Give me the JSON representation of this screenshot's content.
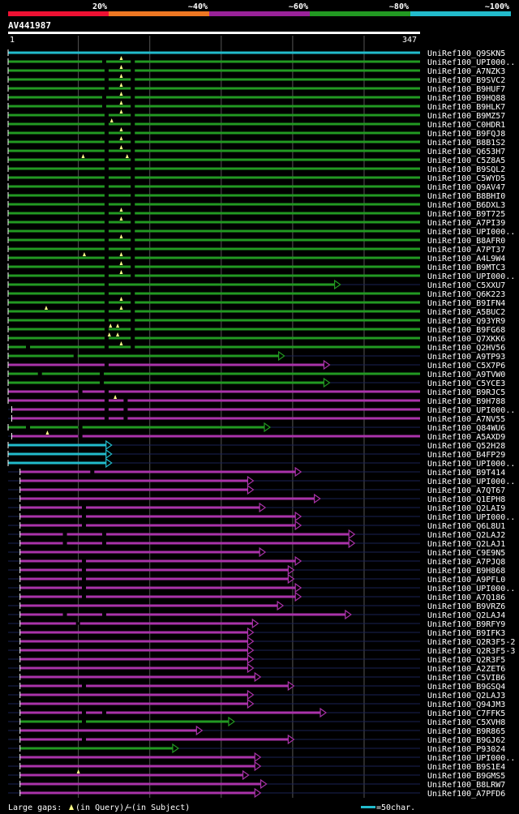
{
  "chart_data": {
    "type": "bar",
    "title": "AV441987",
    "query_length": 347,
    "axis_start_label": "1",
    "axis_end_label": "347",
    "identity_legend": [
      {
        "label": "20%",
        "color": "#ee1133"
      },
      {
        "label": "~40%",
        "color": "#ee7722"
      },
      {
        "label": "~60%",
        "color": "#992299"
      },
      {
        "label": "~80%",
        "color": "#229922"
      },
      {
        "label": "~100%",
        "color": "#22bbcc"
      }
    ],
    "footer": {
      "gaps_text": "Large gaps: ",
      "query_text": "(in Query)/",
      "subject_text": " (in Subject)",
      "scale_text": "=50char."
    },
    "colors": {
      "cyan": "#22bbcc",
      "green": "#229922",
      "purple": "#aa33aa",
      "gap_query": "#ffff88",
      "gap_subject": "#ffffff",
      "background": "#000000",
      "grid": "#555555",
      "label": "#ffffff"
    },
    "series": [
      {
        "name": "UniRef100_Q9SKN5",
        "start": 1,
        "end": 347,
        "color": "cyan",
        "arrow": false,
        "qgaps": [],
        "sgaps": []
      },
      {
        "name": "UniRef100_UPI000..",
        "start": 1,
        "end": 347,
        "color": "green",
        "arrow": false,
        "qgaps": [
          96
        ],
        "sgaps": [
          80,
          104
        ]
      },
      {
        "name": "UniRef100_A7NZK3",
        "start": 1,
        "end": 347,
        "color": "green",
        "arrow": false,
        "qgaps": [
          96
        ],
        "sgaps": [
          82,
          104
        ]
      },
      {
        "name": "UniRef100_B9SVC2",
        "start": 1,
        "end": 347,
        "color": "green",
        "arrow": false,
        "qgaps": [
          96
        ],
        "sgaps": [
          82,
          104
        ]
      },
      {
        "name": "UniRef100_B9HUF7",
        "start": 1,
        "end": 347,
        "color": "green",
        "arrow": false,
        "qgaps": [
          96
        ],
        "sgaps": [
          82,
          104
        ]
      },
      {
        "name": "UniRef100_B9HQ88",
        "start": 1,
        "end": 347,
        "color": "green",
        "arrow": false,
        "qgaps": [
          96
        ],
        "sgaps": [
          80,
          104
        ]
      },
      {
        "name": "UniRef100_B9HLK7",
        "start": 1,
        "end": 347,
        "color": "green",
        "arrow": false,
        "qgaps": [
          96
        ],
        "sgaps": [
          80,
          104
        ]
      },
      {
        "name": "UniRef100_B9MZ57",
        "start": 1,
        "end": 347,
        "color": "green",
        "arrow": false,
        "qgaps": [
          96
        ],
        "sgaps": [
          82,
          104
        ]
      },
      {
        "name": "UniRef100_C0HDR1",
        "start": 1,
        "end": 347,
        "color": "green",
        "arrow": false,
        "qgaps": [
          88
        ],
        "sgaps": [
          82,
          104
        ]
      },
      {
        "name": "UniRef100_B9FQJ8",
        "start": 1,
        "end": 347,
        "color": "green",
        "arrow": false,
        "qgaps": [
          96
        ],
        "sgaps": [
          82,
          104
        ]
      },
      {
        "name": "UniRef100_B8B1S2",
        "start": 1,
        "end": 347,
        "color": "green",
        "arrow": false,
        "qgaps": [
          96
        ],
        "sgaps": [
          82,
          104
        ]
      },
      {
        "name": "UniRef100_Q653H7",
        "start": 1,
        "end": 347,
        "color": "green",
        "arrow": false,
        "qgaps": [
          96
        ],
        "sgaps": [
          82,
          104
        ]
      },
      {
        "name": "UniRef100_C5Z8A5",
        "start": 1,
        "end": 347,
        "color": "green",
        "arrow": false,
        "qgaps": [
          64,
          101
        ],
        "sgaps": [
          82,
          104
        ]
      },
      {
        "name": "UniRef100_B9SQL2",
        "start": 1,
        "end": 347,
        "color": "green",
        "arrow": false,
        "qgaps": [],
        "sgaps": [
          82,
          104
        ]
      },
      {
        "name": "UniRef100_C5WYD5",
        "start": 1,
        "end": 347,
        "color": "green",
        "arrow": false,
        "qgaps": [],
        "sgaps": [
          82,
          104
        ]
      },
      {
        "name": "UniRef100_Q9AV47",
        "start": 1,
        "end": 347,
        "color": "green",
        "arrow": false,
        "qgaps": [],
        "sgaps": [
          82,
          104
        ]
      },
      {
        "name": "UniRef100_B8BHI0",
        "start": 1,
        "end": 347,
        "color": "green",
        "arrow": false,
        "qgaps": [],
        "sgaps": [
          82,
          104
        ]
      },
      {
        "name": "UniRef100_B6DXL3",
        "start": 1,
        "end": 347,
        "color": "green",
        "arrow": false,
        "qgaps": [],
        "sgaps": [
          82,
          104
        ]
      },
      {
        "name": "UniRef100_B9T725",
        "start": 1,
        "end": 347,
        "color": "green",
        "arrow": false,
        "qgaps": [
          96
        ],
        "sgaps": [
          82,
          104
        ]
      },
      {
        "name": "UniRef100_A7PI39",
        "start": 1,
        "end": 347,
        "color": "green",
        "arrow": false,
        "qgaps": [
          96
        ],
        "sgaps": [
          82,
          104
        ]
      },
      {
        "name": "UniRef100_UPI000..",
        "start": 1,
        "end": 347,
        "color": "green",
        "arrow": false,
        "qgaps": [],
        "sgaps": [
          82,
          104
        ]
      },
      {
        "name": "UniRef100_B8AFR0",
        "start": 1,
        "end": 347,
        "color": "green",
        "arrow": false,
        "qgaps": [
          96
        ],
        "sgaps": [
          82,
          104
        ]
      },
      {
        "name": "UniRef100_A7PT37",
        "start": 1,
        "end": 347,
        "color": "green",
        "arrow": false,
        "qgaps": [],
        "sgaps": [
          82,
          104
        ]
      },
      {
        "name": "UniRef100_A4L9W4",
        "start": 1,
        "end": 347,
        "color": "green",
        "arrow": false,
        "qgaps": [
          65,
          96
        ],
        "sgaps": [
          82,
          104
        ]
      },
      {
        "name": "UniRef100_B9MTC3",
        "start": 1,
        "end": 347,
        "color": "green",
        "arrow": false,
        "qgaps": [
          96
        ],
        "sgaps": [
          82,
          104
        ]
      },
      {
        "name": "UniRef100_UPI000..",
        "start": 1,
        "end": 347,
        "color": "green",
        "arrow": false,
        "qgaps": [
          96
        ],
        "sgaps": [
          82,
          104
        ]
      },
      {
        "name": "UniRef100_C5XXU7",
        "start": 1,
        "end": 280,
        "color": "green",
        "arrow": true,
        "qgaps": [],
        "sgaps": [
          82
        ]
      },
      {
        "name": "UniRef100_Q6K223",
        "start": 1,
        "end": 347,
        "color": "green",
        "arrow": false,
        "qgaps": [],
        "sgaps": [
          82,
          104
        ]
      },
      {
        "name": "UniRef100_B9IFN4",
        "start": 1,
        "end": 347,
        "color": "green",
        "arrow": false,
        "qgaps": [
          96
        ],
        "sgaps": [
          82,
          104
        ]
      },
      {
        "name": "UniRef100_A5BUC2",
        "start": 1,
        "end": 347,
        "color": "green",
        "arrow": false,
        "qgaps": [
          33,
          96
        ],
        "sgaps": [
          82,
          104
        ]
      },
      {
        "name": "UniRef100_Q93YR9",
        "start": 1,
        "end": 347,
        "color": "green",
        "arrow": false,
        "qgaps": [],
        "sgaps": [
          82,
          104
        ]
      },
      {
        "name": "UniRef100_B9FG68",
        "start": 1,
        "end": 347,
        "color": "green",
        "arrow": false,
        "qgaps": [
          87,
          93
        ],
        "sgaps": [
          82,
          104
        ]
      },
      {
        "name": "UniRef100_Q7XKK6",
        "start": 1,
        "end": 347,
        "color": "green",
        "arrow": false,
        "qgaps": [
          86,
          93
        ],
        "sgaps": [
          82,
          104
        ]
      },
      {
        "name": "UniRef100_Q2HV56",
        "start": 1,
        "end": 347,
        "color": "green",
        "arrow": false,
        "qgaps": [
          96
        ],
        "sgaps": [
          16,
          82,
          104
        ]
      },
      {
        "name": "UniRef100_A9TP93",
        "start": 1,
        "end": 233,
        "color": "green",
        "arrow": true,
        "qgaps": [],
        "sgaps": [
          56
        ]
      },
      {
        "name": "UniRef100_C5X7P6",
        "start": 1,
        "end": 271,
        "color": "purple",
        "arrow": true,
        "qgaps": [],
        "sgaps": [
          82
        ]
      },
      {
        "name": "UniRef100_A9TVW0",
        "start": 1,
        "end": 347,
        "color": "green",
        "arrow": false,
        "qgaps": [],
        "sgaps": [
          26,
          78
        ]
      },
      {
        "name": "UniRef100_C5YCE3",
        "start": 1,
        "end": 271,
        "color": "green",
        "arrow": true,
        "qgaps": [],
        "sgaps": [
          78
        ]
      },
      {
        "name": "UniRef100_B9RJC5",
        "start": 1,
        "end": 347,
        "color": "purple",
        "arrow": false,
        "qgaps": [],
        "sgaps": [
          60,
          82
        ]
      },
      {
        "name": "UniRef100_B9H788",
        "start": 1,
        "end": 347,
        "color": "purple",
        "arrow": false,
        "qgaps": [
          91
        ],
        "sgaps": [
          82,
          98
        ]
      },
      {
        "name": "UniRef100_UPI000..",
        "start": 4,
        "end": 347,
        "color": "purple",
        "arrow": false,
        "qgaps": [],
        "sgaps": [
          82,
          98
        ]
      },
      {
        "name": "UniRef100_A7NV55",
        "start": 4,
        "end": 347,
        "color": "purple",
        "arrow": false,
        "qgaps": [],
        "sgaps": [
          82,
          98
        ]
      },
      {
        "name": "UniRef100_Q84WU6",
        "start": 1,
        "end": 221,
        "color": "green",
        "arrow": true,
        "qgaps": [],
        "sgaps": [
          16,
          60
        ]
      },
      {
        "name": "UniRef100_A5AXD9",
        "start": 4,
        "end": 347,
        "color": "purple",
        "arrow": false,
        "qgaps": [
          34
        ],
        "sgaps": [
          60
        ]
      },
      {
        "name": "UniRef100_Q52H28",
        "start": 1,
        "end": 88,
        "color": "cyan",
        "arrow": true,
        "qgaps": [],
        "sgaps": []
      },
      {
        "name": "UniRef100_B4FP29",
        "start": 1,
        "end": 88,
        "color": "cyan",
        "arrow": true,
        "qgaps": [],
        "sgaps": []
      },
      {
        "name": "UniRef100_UPI000..",
        "start": 1,
        "end": 88,
        "color": "cyan",
        "arrow": true,
        "qgaps": [],
        "sgaps": []
      },
      {
        "name": "UniRef100_B9T414",
        "start": 11,
        "end": 247,
        "color": "purple",
        "arrow": true,
        "qgaps": [],
        "sgaps": [
          70
        ]
      },
      {
        "name": "UniRef100_UPI000..",
        "start": 11,
        "end": 207,
        "color": "purple",
        "arrow": true,
        "qgaps": [],
        "sgaps": []
      },
      {
        "name": "UniRef100_A7QT67",
        "start": 11,
        "end": 207,
        "color": "purple",
        "arrow": true,
        "qgaps": [],
        "sgaps": []
      },
      {
        "name": "UniRef100_Q1EPH8",
        "start": 11,
        "end": 263,
        "color": "purple",
        "arrow": true,
        "qgaps": [],
        "sgaps": []
      },
      {
        "name": "UniRef100_Q2LAI9",
        "start": 11,
        "end": 217,
        "color": "purple",
        "arrow": true,
        "qgaps": [],
        "sgaps": [
          63
        ]
      },
      {
        "name": "UniRef100_UPI000..",
        "start": 11,
        "end": 247,
        "color": "purple",
        "arrow": true,
        "qgaps": [],
        "sgaps": [
          63
        ]
      },
      {
        "name": "UniRef100_Q6L8U1",
        "start": 11,
        "end": 247,
        "color": "purple",
        "arrow": true,
        "qgaps": [],
        "sgaps": [
          63
        ]
      },
      {
        "name": "UniRef100_Q2LAJ2",
        "start": 11,
        "end": 292,
        "color": "purple",
        "arrow": true,
        "qgaps": [],
        "sgaps": [
          47,
          80
        ]
      },
      {
        "name": "UniRef100_Q2LAJ1",
        "start": 11,
        "end": 292,
        "color": "purple",
        "arrow": true,
        "qgaps": [],
        "sgaps": [
          47,
          80
        ]
      },
      {
        "name": "UniRef100_C9E9N5",
        "start": 11,
        "end": 217,
        "color": "purple",
        "arrow": true,
        "qgaps": [],
        "sgaps": []
      },
      {
        "name": "UniRef100_A7PJQ8",
        "start": 11,
        "end": 247,
        "color": "purple",
        "arrow": true,
        "qgaps": [],
        "sgaps": [
          63
        ]
      },
      {
        "name": "UniRef100_B9H868",
        "start": 11,
        "end": 241,
        "color": "purple",
        "arrow": true,
        "qgaps": [],
        "sgaps": [
          63
        ]
      },
      {
        "name": "UniRef100_A9PFL0",
        "start": 11,
        "end": 241,
        "color": "purple",
        "arrow": true,
        "qgaps": [],
        "sgaps": [
          63
        ]
      },
      {
        "name": "UniRef100_UPI000..",
        "start": 11,
        "end": 247,
        "color": "purple",
        "arrow": true,
        "qgaps": [],
        "sgaps": [
          63
        ]
      },
      {
        "name": "UniRef100_A7Q186",
        "start": 11,
        "end": 247,
        "color": "purple",
        "arrow": true,
        "qgaps": [],
        "sgaps": [
          63
        ]
      },
      {
        "name": "UniRef100_B9VRZ6",
        "start": 11,
        "end": 232,
        "color": "purple",
        "arrow": true,
        "qgaps": [],
        "sgaps": []
      },
      {
        "name": "UniRef100_Q2LAJ4",
        "start": 11,
        "end": 289,
        "color": "purple",
        "arrow": true,
        "qgaps": [],
        "sgaps": [
          47,
          80
        ]
      },
      {
        "name": "UniRef100_B9RFY9",
        "start": 11,
        "end": 211,
        "color": "purple",
        "arrow": true,
        "qgaps": [],
        "sgaps": [
          58
        ]
      },
      {
        "name": "UniRef100_B9IFK3",
        "start": 11,
        "end": 207,
        "color": "purple",
        "arrow": true,
        "qgaps": [],
        "sgaps": []
      },
      {
        "name": "UniRef100_Q2R3F5-2",
        "start": 11,
        "end": 207,
        "color": "purple",
        "arrow": true,
        "qgaps": [],
        "sgaps": []
      },
      {
        "name": "UniRef100_Q2R3F5-3",
        "start": 11,
        "end": 207,
        "color": "purple",
        "arrow": true,
        "qgaps": [],
        "sgaps": []
      },
      {
        "name": "UniRef100_Q2R3F5",
        "start": 11,
        "end": 207,
        "color": "purple",
        "arrow": true,
        "qgaps": [],
        "sgaps": []
      },
      {
        "name": "UniRef100_A2ZET6",
        "start": 11,
        "end": 207,
        "color": "purple",
        "arrow": true,
        "qgaps": [],
        "sgaps": []
      },
      {
        "name": "UniRef100_C5VIB6",
        "start": 11,
        "end": 213,
        "color": "purple",
        "arrow": true,
        "qgaps": [],
        "sgaps": []
      },
      {
        "name": "UniRef100_B9GSQ4",
        "start": 11,
        "end": 241,
        "color": "purple",
        "arrow": true,
        "qgaps": [],
        "sgaps": [
          63
        ]
      },
      {
        "name": "UniRef100_Q2LAJ3",
        "start": 11,
        "end": 207,
        "color": "purple",
        "arrow": true,
        "qgaps": [],
        "sgaps": []
      },
      {
        "name": "UniRef100_Q94JM3",
        "start": 11,
        "end": 207,
        "color": "purple",
        "arrow": true,
        "qgaps": [],
        "sgaps": []
      },
      {
        "name": "UniRef100_C7FFK5",
        "start": 11,
        "end": 268,
        "color": "purple",
        "arrow": true,
        "qgaps": [],
        "sgaps": [
          63,
          80
        ]
      },
      {
        "name": "UniRef100_C5XVH8",
        "start": 11,
        "end": 191,
        "color": "green",
        "arrow": true,
        "qgaps": [],
        "sgaps": [
          63
        ]
      },
      {
        "name": "UniRef100_B9R865",
        "start": 11,
        "end": 164,
        "color": "purple",
        "arrow": true,
        "qgaps": [],
        "sgaps": []
      },
      {
        "name": "UniRef100_B9GJ62",
        "start": 11,
        "end": 241,
        "color": "purple",
        "arrow": true,
        "qgaps": [],
        "sgaps": [
          63
        ]
      },
      {
        "name": "UniRef100_P93024",
        "start": 11,
        "end": 144,
        "color": "green",
        "arrow": true,
        "qgaps": [],
        "sgaps": []
      },
      {
        "name": "UniRef100_UPI000..",
        "start": 11,
        "end": 213,
        "color": "purple",
        "arrow": true,
        "qgaps": [],
        "sgaps": []
      },
      {
        "name": "UniRef100_B9S1E4",
        "start": 11,
        "end": 213,
        "color": "purple",
        "arrow": true,
        "qgaps": [],
        "sgaps": []
      },
      {
        "name": "UniRef100_B9GMS5",
        "start": 11,
        "end": 203,
        "color": "purple",
        "arrow": true,
        "qgaps": [
          60
        ],
        "sgaps": []
      },
      {
        "name": "UniRef100_B8LRW7",
        "start": 11,
        "end": 218,
        "color": "purple",
        "arrow": true,
        "qgaps": [],
        "sgaps": []
      },
      {
        "name": "UniRef100_A7PFD6",
        "start": 11,
        "end": 213,
        "color": "purple",
        "arrow": true,
        "qgaps": [],
        "sgaps": []
      }
    ]
  }
}
